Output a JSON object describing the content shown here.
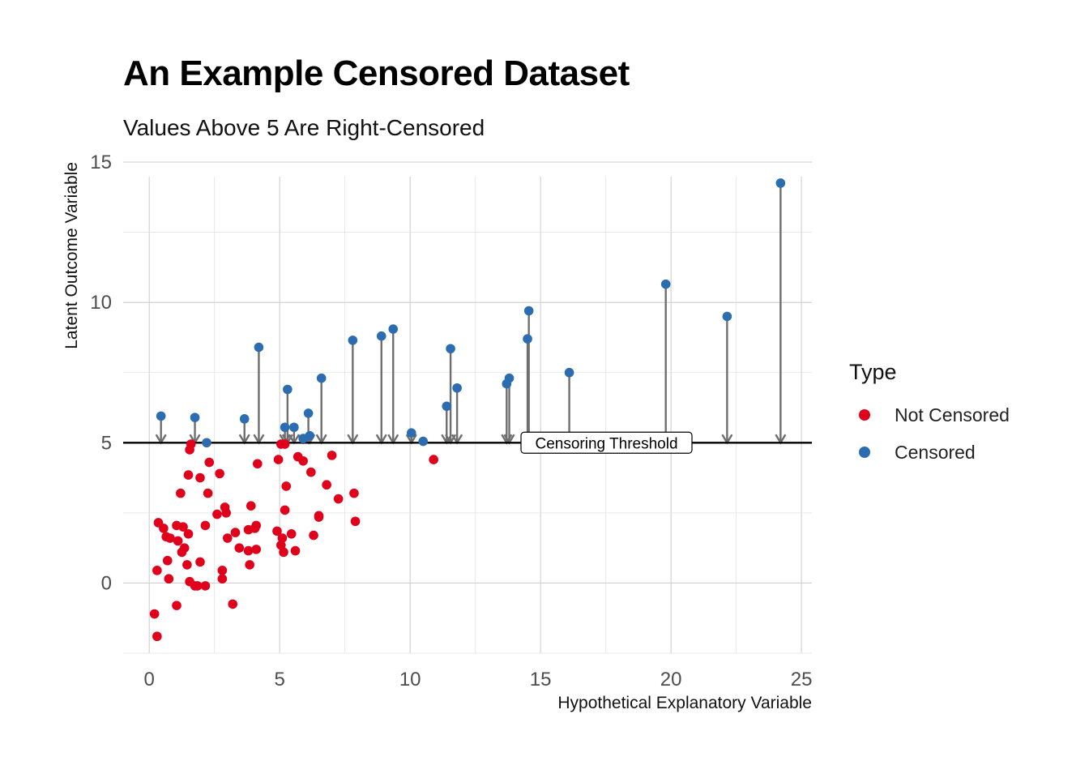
{
  "title": "An Example Censored Dataset",
  "subtitle": "Values Above 5 Are Right-Censored",
  "legend": {
    "title": "Type",
    "items": [
      {
        "label": "Not Censored",
        "color": "#E0001B"
      },
      {
        "label": "Censored",
        "color": "#2C6CB0"
      }
    ]
  },
  "chart_data": {
    "type": "scatter",
    "title": "An Example Censored Dataset",
    "subtitle": "Values Above 5 Are Right-Censored",
    "xlabel": "Hypothetical Explanatory Variable",
    "ylabel": "Latent Outcome Variable",
    "xlim": [
      -1,
      25.4
    ],
    "ylim": [
      -2.5,
      15
    ],
    "xticks": [
      0,
      5,
      10,
      15,
      20,
      25
    ],
    "yticks": [
      0,
      5,
      10,
      15
    ],
    "threshold": 5,
    "threshold_label": "Censoring Threshold",
    "series": [
      {
        "name": "Not Censored",
        "color": "#E0001B",
        "points": [
          [
            0.2,
            -1.1
          ],
          [
            0.3,
            -1.9
          ],
          [
            0.3,
            0.45
          ],
          [
            0.35,
            2.15
          ],
          [
            0.55,
            1.95
          ],
          [
            0.65,
            1.65
          ],
          [
            0.7,
            0.8
          ],
          [
            0.75,
            0.15
          ],
          [
            0.8,
            1.6
          ],
          [
            1.05,
            2.05
          ],
          [
            1.05,
            -0.8
          ],
          [
            1.1,
            1.5
          ],
          [
            1.2,
            3.2
          ],
          [
            1.25,
            1.1
          ],
          [
            1.3,
            2.0
          ],
          [
            1.35,
            1.25
          ],
          [
            1.45,
            0.65
          ],
          [
            1.5,
            1.75
          ],
          [
            1.5,
            3.85
          ],
          [
            1.55,
            0.05
          ],
          [
            1.55,
            4.75
          ],
          [
            1.6,
            4.95
          ],
          [
            1.75,
            -0.1
          ],
          [
            1.85,
            -0.1
          ],
          [
            1.95,
            0.75
          ],
          [
            1.95,
            3.75
          ],
          [
            2.15,
            2.05
          ],
          [
            2.15,
            -0.1
          ],
          [
            2.25,
            3.2
          ],
          [
            2.3,
            4.3
          ],
          [
            2.6,
            2.45
          ],
          [
            2.7,
            3.9
          ],
          [
            2.8,
            0.15
          ],
          [
            2.8,
            0.45
          ],
          [
            2.9,
            2.7
          ],
          [
            2.95,
            2.5
          ],
          [
            3.0,
            1.6
          ],
          [
            3.2,
            -0.75
          ],
          [
            3.3,
            1.8
          ],
          [
            3.45,
            1.25
          ],
          [
            3.8,
            1.9
          ],
          [
            3.8,
            1.15
          ],
          [
            3.85,
            0.65
          ],
          [
            3.9,
            2.75
          ],
          [
            4.05,
            1.95
          ],
          [
            4.1,
            1.2
          ],
          [
            4.1,
            2.05
          ],
          [
            4.15,
            4.25
          ],
          [
            4.9,
            1.85
          ],
          [
            4.95,
            4.4
          ],
          [
            5.05,
            4.95
          ],
          [
            5.05,
            1.35
          ],
          [
            5.1,
            1.6
          ],
          [
            5.15,
            1.1
          ],
          [
            5.2,
            2.6
          ],
          [
            5.2,
            4.95
          ],
          [
            5.25,
            3.45
          ],
          [
            5.45,
            1.75
          ],
          [
            5.6,
            1.15
          ],
          [
            5.7,
            4.5
          ],
          [
            5.9,
            4.35
          ],
          [
            6.2,
            3.95
          ],
          [
            6.3,
            1.7
          ],
          [
            6.5,
            2.35
          ],
          [
            6.5,
            2.4
          ],
          [
            6.8,
            3.5
          ],
          [
            7.0,
            4.55
          ],
          [
            7.25,
            3.0
          ],
          [
            7.85,
            3.2
          ],
          [
            7.9,
            2.2
          ],
          [
            10.9,
            4.4
          ]
        ]
      },
      {
        "name": "Censored",
        "color": "#2C6CB0",
        "points": [
          [
            0.45,
            5.95
          ],
          [
            1.75,
            5.9
          ],
          [
            2.2,
            5.0
          ],
          [
            3.65,
            5.85
          ],
          [
            4.2,
            8.4
          ],
          [
            5.2,
            5.55
          ],
          [
            5.3,
            6.9
          ],
          [
            5.55,
            5.55
          ],
          [
            5.9,
            5.15
          ],
          [
            6.1,
            6.05
          ],
          [
            6.15,
            5.25
          ],
          [
            6.6,
            7.3
          ],
          [
            7.8,
            8.65
          ],
          [
            8.9,
            8.8
          ],
          [
            9.35,
            9.05
          ],
          [
            10.05,
            5.35
          ],
          [
            10.5,
            5.05
          ],
          [
            11.4,
            6.3
          ],
          [
            11.55,
            8.35
          ],
          [
            11.8,
            6.95
          ],
          [
            13.7,
            7.1
          ],
          [
            13.8,
            7.3
          ],
          [
            14.5,
            8.7
          ],
          [
            14.55,
            9.7
          ],
          [
            16.1,
            7.5
          ],
          [
            19.8,
            10.65
          ],
          [
            22.15,
            9.5
          ],
          [
            24.2,
            14.25
          ]
        ]
      }
    ]
  }
}
